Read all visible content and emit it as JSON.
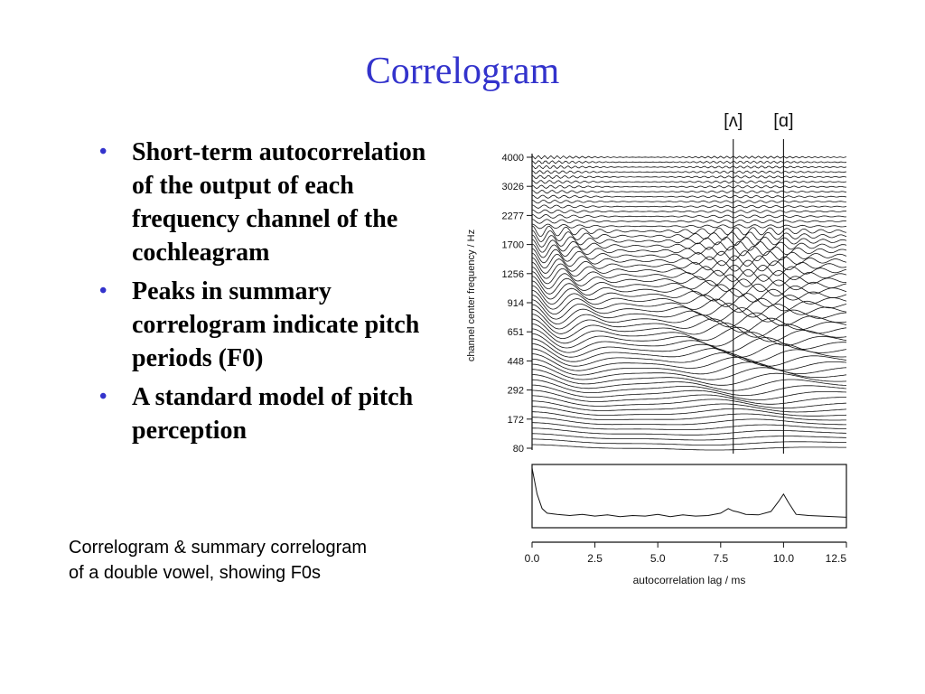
{
  "slide": {
    "title": "Correlogram",
    "bullets": [
      "Short-term autocorrelation of the output of each frequency channel of the cochleagram",
      "Peaks in summary correlogram indicate pitch periods (F0)",
      "A standard model of pitch perception"
    ],
    "bullet_symbol": "•",
    "caption_line1": "Correlogram & summary correlogram",
    "caption_line2": "of a double vowel, showing F0s"
  },
  "colors": {
    "title": "#3333cc",
    "bullet": "#3333cc",
    "text": "#000000"
  },
  "chart_data": [
    {
      "type": "line",
      "title": "",
      "xlabel": "autocorrelation lag / ms",
      "ylabel": "channel center frequency / Hz",
      "xlim": [
        0,
        12.5
      ],
      "y_scale": "log",
      "y_ticks": [
        "4000",
        "3026",
        "2277",
        "1700",
        "1256",
        "914",
        "651",
        "448",
        "292",
        "172",
        "80"
      ],
      "annotations": [
        {
          "label": "[ʌ]",
          "x": 8.0
        },
        {
          "label": "[ɑ]",
          "x": 10.0
        }
      ]
    },
    {
      "type": "line",
      "title": "summary correlogram",
      "xlabel": "autocorrelation lag / ms",
      "x_ticks": [
        "0.0",
        "2.5",
        "5.0",
        "7.5",
        "10.0",
        "12.5"
      ],
      "xlim": [
        0,
        12.5
      ],
      "series": [
        {
          "x": [
            0.0,
            0.2,
            0.4,
            0.6,
            1.0,
            1.5,
            2.0,
            2.5,
            3.0,
            3.5,
            4.0,
            4.5,
            5.0,
            5.5,
            6.0,
            6.5,
            7.0,
            7.5,
            7.8,
            8.0,
            8.2,
            8.5,
            9.0,
            9.5,
            9.8,
            10.0,
            10.2,
            10.5,
            11.0,
            11.5,
            12.0,
            12.5
          ],
          "y": [
            1.0,
            0.55,
            0.3,
            0.22,
            0.2,
            0.18,
            0.2,
            0.17,
            0.19,
            0.16,
            0.18,
            0.17,
            0.2,
            0.16,
            0.19,
            0.17,
            0.18,
            0.22,
            0.3,
            0.26,
            0.24,
            0.2,
            0.19,
            0.25,
            0.42,
            0.55,
            0.4,
            0.2,
            0.18,
            0.17,
            0.16,
            0.15
          ]
        }
      ]
    }
  ]
}
